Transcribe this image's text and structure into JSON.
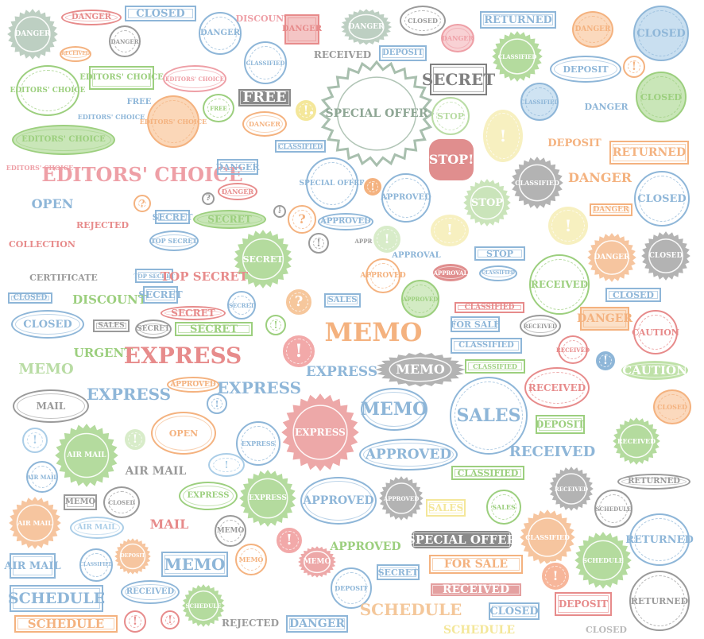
{
  "palette": {
    "green": "#9ccf7e",
    "lightgreen": "#b9dca4",
    "blue": "#8eb6d8",
    "lightblue": "#aacde7",
    "red": "#e78b8b",
    "pink": "#ee9fa6",
    "orange": "#f4b27f",
    "yellow": "#f4e79a",
    "gray": "#9a9a9a",
    "darkgray": "#7f7f7f",
    "sage": "#a8bfae"
  },
  "stamps": [
    {
      "id": "danger-burst-1",
      "text": "DANGER",
      "color": "sage"
    },
    {
      "id": "danger-1",
      "text": "DANGER",
      "color": "red"
    },
    {
      "id": "closed-1",
      "text": "CLOSED",
      "color": "blue"
    },
    {
      "id": "received-1",
      "text": "RECEIVED",
      "color": "orange"
    },
    {
      "id": "danger-2",
      "text": "DANGER",
      "color": "gray"
    },
    {
      "id": "danger-3",
      "text": "DANGER",
      "color": "blue"
    },
    {
      "id": "discount-1",
      "text": "DISCOUNT",
      "color": "pink"
    },
    {
      "id": "danger-4",
      "text": "DANGER",
      "color": "red"
    },
    {
      "id": "danger-5",
      "text": "DANGER",
      "color": "sage"
    },
    {
      "id": "closed-2",
      "text": "CLOSED",
      "color": "gray"
    },
    {
      "id": "danger-6",
      "text": "DANGER",
      "color": "pink"
    },
    {
      "id": "returned-1",
      "text": "RETURNED",
      "color": "blue"
    },
    {
      "id": "danger-7",
      "text": "DANGER",
      "color": "orange"
    },
    {
      "id": "closed-3",
      "text": "CLOSED",
      "color": "blue"
    },
    {
      "id": "classified-1",
      "text": "CLASSIFIED",
      "color": "blue"
    },
    {
      "id": "received-2",
      "text": "RECEIVED",
      "color": "gray"
    },
    {
      "id": "deposit-1",
      "text": "DEPOSIT",
      "color": "blue"
    },
    {
      "id": "secret-1",
      "text": "SECRET",
      "color": "darkgray"
    },
    {
      "id": "classified-2",
      "text": "CLASSIFIED",
      "color": "green"
    },
    {
      "id": "deposit-2",
      "text": "DEPOSIT",
      "color": "blue"
    },
    {
      "id": "editors-choice-1",
      "text": "EDITORS' CHOICE",
      "color": "green"
    },
    {
      "id": "editors-choice-2",
      "text": "EDITORS' CHOICE",
      "color": "green"
    },
    {
      "id": "editors-choice-3",
      "text": "EDITORS' CHOICE",
      "color": "pink"
    },
    {
      "id": "free-1",
      "text": "FREE",
      "color": "darkgray"
    },
    {
      "id": "special-offer-1",
      "text": "SPECIAL OFFER",
      "color": "darkgray"
    },
    {
      "id": "classified-3",
      "text": "CLASSIFIED",
      "color": "blue"
    },
    {
      "id": "closed-4",
      "text": "CLOSED",
      "color": "green"
    },
    {
      "id": "free-2",
      "text": "FREE",
      "color": "blue"
    },
    {
      "id": "editors-choice-4",
      "text": "EDITORS' CHOICE",
      "color": "blue"
    },
    {
      "id": "editors-choice-5",
      "text": "EDITORS' CHOICE",
      "color": "orange"
    },
    {
      "id": "danger-8",
      "text": "DANGER",
      "color": "blue"
    },
    {
      "id": "free-3",
      "text": "FREE",
      "color": "green"
    },
    {
      "id": "danger-9",
      "text": "DANGER",
      "color": "orange"
    },
    {
      "id": "stop-1",
      "text": "STOP",
      "color": "green"
    },
    {
      "id": "editors-choice-6",
      "text": "EDITORS' CHOICE",
      "color": "green"
    },
    {
      "id": "classified-4",
      "text": "CLASSIFIED",
      "color": "blue"
    },
    {
      "id": "deposit-3",
      "text": "DEPOSIT",
      "color": "orange"
    },
    {
      "id": "returned-2",
      "text": "RETURNED",
      "color": "orange"
    },
    {
      "id": "stop-2",
      "text": "STOP!",
      "color": "red"
    },
    {
      "id": "editors-choice-7",
      "text": "EDITORS' CHOICE",
      "color": "orange"
    },
    {
      "id": "editors-choice-big",
      "text": "EDITORS' CHOICE",
      "color": "red"
    },
    {
      "id": "danger-10",
      "text": "DANGER",
      "color": "blue"
    },
    {
      "id": "special-offer-2",
      "text": "SPECIAL OFFER",
      "color": "blue"
    },
    {
      "id": "classified-5",
      "text": "CLASSIFIED",
      "color": "gray"
    },
    {
      "id": "danger-11",
      "text": "DANGER",
      "color": "orange"
    },
    {
      "id": "open-1",
      "text": "OPEN",
      "color": "blue"
    },
    {
      "id": "danger-12",
      "text": "DANGER",
      "color": "red"
    },
    {
      "id": "approved-1",
      "text": "APPROVED",
      "color": "blue"
    },
    {
      "id": "stop-3",
      "text": "STOP",
      "color": "green"
    },
    {
      "id": "closed-5",
      "text": "CLOSED",
      "color": "blue"
    },
    {
      "id": "rejected-1",
      "text": "REJECTED",
      "color": "red"
    },
    {
      "id": "secret-2",
      "text": "SECRET",
      "color": "blue"
    },
    {
      "id": "secret-3",
      "text": "SECRET",
      "color": "green"
    },
    {
      "id": "danger-13",
      "text": "DANGER",
      "color": "orange"
    },
    {
      "id": "approved-2",
      "text": "APPROVED",
      "color": "blue"
    },
    {
      "id": "collection-1",
      "text": "COLLECTION",
      "color": "red"
    },
    {
      "id": "top-secret-1",
      "text": "TOP SECRET",
      "color": "blue"
    },
    {
      "id": "approval-1",
      "text": "APPROVAL",
      "color": "gray"
    },
    {
      "id": "stop-4",
      "text": "STOP",
      "color": "blue"
    },
    {
      "id": "secret-4",
      "text": "SECRET",
      "color": "green"
    },
    {
      "id": "approval-2",
      "text": "APPROVAL",
      "color": "blue"
    },
    {
      "id": "danger-14",
      "text": "DANGER",
      "color": "orange"
    },
    {
      "id": "closed-6",
      "text": "CLOSED",
      "color": "gray"
    },
    {
      "id": "certificate-1",
      "text": "CERTIFICATE",
      "color": "gray"
    },
    {
      "id": "top-secret-2",
      "text": "TOP SECRET",
      "color": "blue"
    },
    {
      "id": "top-secret-3",
      "text": "TOP SECRET",
      "color": "red"
    },
    {
      "id": "approved-3",
      "text": "APPROVED",
      "color": "orange"
    },
    {
      "id": "approval-3",
      "text": "APPROVAL",
      "color": "red"
    },
    {
      "id": "classified-6",
      "text": "CLASSIFIED",
      "color": "blue"
    },
    {
      "id": "received-3",
      "text": "RECEIVED",
      "color": "green"
    },
    {
      "id": "closed-7",
      "text": "CLOSED",
      "color": "blue"
    },
    {
      "id": "discount-2",
      "text": "DISCOUNT",
      "color": "green"
    },
    {
      "id": "secret-5",
      "text": "SECRET",
      "color": "blue"
    },
    {
      "id": "secret-6",
      "text": "SECRET",
      "color": "red"
    },
    {
      "id": "secret-7",
      "text": "SECRET",
      "color": "blue"
    },
    {
      "id": "sales-1",
      "text": "SALES",
      "color": "blue"
    },
    {
      "id": "approved-4",
      "text": "APPROVED",
      "color": "green"
    },
    {
      "id": "classified-7",
      "text": "CLASSIFIED",
      "color": "red"
    },
    {
      "id": "closed-8",
      "text": "CLOSED",
      "color": "blue"
    },
    {
      "id": "closed-9",
      "text": "CLOSED",
      "color": "blue"
    },
    {
      "id": "sales-2",
      "text": "SALES",
      "color": "gray"
    },
    {
      "id": "secret-8",
      "text": "SECRET",
      "color": "gray"
    },
    {
      "id": "secret-9",
      "text": "SECRET",
      "color": "green"
    },
    {
      "id": "memo-1",
      "text": "MEMO",
      "color": "orange"
    },
    {
      "id": "for-sale-1",
      "text": "FOR SALE",
      "color": "blue"
    },
    {
      "id": "received-4",
      "text": "RECEIVED",
      "color": "gray"
    },
    {
      "id": "danger-15",
      "text": "DANGER",
      "color": "orange"
    },
    {
      "id": "caution-1",
      "text": "CAUTION",
      "color": "red"
    },
    {
      "id": "urgent-1",
      "text": "URGENT",
      "color": "green"
    },
    {
      "id": "express-1",
      "text": "EXPRESS",
      "color": "red"
    },
    {
      "id": "classified-8",
      "text": "CLASSIFIED",
      "color": "blue"
    },
    {
      "id": "received-5",
      "text": "RECEIVED",
      "color": "red"
    },
    {
      "id": "memo-2",
      "text": "MEMO",
      "color": "green"
    },
    {
      "id": "express-2",
      "text": "EXPRESS",
      "color": "blue"
    },
    {
      "id": "memo-3",
      "text": "MEMO",
      "color": "gray"
    },
    {
      "id": "classified-9",
      "text": "CLASSIFIED",
      "color": "green"
    },
    {
      "id": "caution-2",
      "text": "CAUTION",
      "color": "green"
    },
    {
      "id": "express-3",
      "text": "EXPRESS",
      "color": "blue"
    },
    {
      "id": "approved-5",
      "text": "APPROVED",
      "color": "orange"
    },
    {
      "id": "express-4",
      "text": "EXPRESS",
      "color": "blue"
    },
    {
      "id": "express-5",
      "text": "EXPRESS",
      "color": "red"
    },
    {
      "id": "received-6",
      "text": "RECEIVED",
      "color": "red"
    },
    {
      "id": "mail-1",
      "text": "MAIL",
      "color": "gray"
    },
    {
      "id": "memo-4",
      "text": "MEMO",
      "color": "blue"
    },
    {
      "id": "sales-3",
      "text": "SALES",
      "color": "blue"
    },
    {
      "id": "closed-10",
      "text": "CLOSED",
      "color": "orange"
    },
    {
      "id": "deposit-4",
      "text": "DEPOSIT",
      "color": "green"
    },
    {
      "id": "received-7",
      "text": "RECEIVED",
      "color": "green"
    },
    {
      "id": "open-2",
      "text": "OPEN",
      "color": "orange"
    },
    {
      "id": "air-mail-1",
      "text": "AIR MAIL",
      "color": "green"
    },
    {
      "id": "express-6",
      "text": "EXPRESS",
      "color": "blue"
    },
    {
      "id": "approved-6",
      "text": "APPROVED",
      "color": "blue"
    },
    {
      "id": "received-8",
      "text": "RECEIVED",
      "color": "blue"
    },
    {
      "id": "air-mail-2",
      "text": "AIR MAIL",
      "color": "gray"
    },
    {
      "id": "air-mail-3",
      "text": "AIR MAIL",
      "color": "blue"
    },
    {
      "id": "classified-10",
      "text": "CLASSIFIED",
      "color": "green"
    },
    {
      "id": "returned-3",
      "text": "RETURNED",
      "color": "gray"
    },
    {
      "id": "express-7",
      "text": "EXPRESS",
      "color": "green"
    },
    {
      "id": "express-8",
      "text": "EXPRESS",
      "color": "green"
    },
    {
      "id": "approved-7",
      "text": "APPROVED",
      "color": "blue"
    },
    {
      "id": "approved-8",
      "text": "APPROVED",
      "color": "gray"
    },
    {
      "id": "sales-4",
      "text": "SALES",
      "color": "yellow"
    },
    {
      "id": "received-9",
      "text": "RECEIVED",
      "color": "blue"
    },
    {
      "id": "schedule-1",
      "text": "SCHEDULE",
      "color": "gray"
    },
    {
      "id": "memo-5",
      "text": "MEMO",
      "color": "gray"
    },
    {
      "id": "sales-5",
      "text": "SALES",
      "color": "green"
    },
    {
      "id": "closed-11",
      "text": "CLOSED",
      "color": "gray"
    },
    {
      "id": "air-mail-4",
      "text": "AIR MAIL",
      "color": "orange"
    },
    {
      "id": "air-mail-5",
      "text": "AIR MAIL",
      "color": "lightblue"
    },
    {
      "id": "mail-2",
      "text": "MAIL",
      "color": "red"
    },
    {
      "id": "memo-6",
      "text": "MEMO",
      "color": "gray"
    },
    {
      "id": "special-offer-3",
      "text": "SPECIAL OFFER",
      "color": "darkgray"
    },
    {
      "id": "classified-11",
      "text": "CLASSIFIED",
      "color": "orange"
    },
    {
      "id": "returned-4",
      "text": "RETURNED",
      "color": "blue"
    },
    {
      "id": "approved-9",
      "text": "APPROVED",
      "color": "green"
    },
    {
      "id": "for-sale-2",
      "text": "FOR SALE",
      "color": "orange"
    },
    {
      "id": "schedule-2",
      "text": "SCHEDULE",
      "color": "green"
    },
    {
      "id": "air-mail-6",
      "text": "AIR MAIL",
      "color": "blue"
    },
    {
      "id": "classified-12",
      "text": "CLASSIFIED",
      "color": "blue"
    },
    {
      "id": "deposit-5",
      "text": "DEPOSIT",
      "color": "orange"
    },
    {
      "id": "memo-7",
      "text": "MEMO",
      "color": "blue"
    },
    {
      "id": "memo-8",
      "text": "MEMO",
      "color": "orange"
    },
    {
      "id": "memo-9",
      "text": "MEMO",
      "color": "red"
    },
    {
      "id": "deposit-6",
      "text": "DEPOSIT",
      "color": "blue"
    },
    {
      "id": "secret-10",
      "text": "SECRET",
      "color": "blue"
    },
    {
      "id": "received-10",
      "text": "RECEIVED",
      "color": "red"
    },
    {
      "id": "returned-5",
      "text": "RETURNED",
      "color": "gray"
    },
    {
      "id": "schedule-3",
      "text": "SCHEDULE",
      "color": "blue"
    },
    {
      "id": "received-11",
      "text": "RECEIVED",
      "color": "blue"
    },
    {
      "id": "schedule-4",
      "text": "SCHEDULE",
      "color": "green"
    },
    {
      "id": "closed-12",
      "text": "CLOSED",
      "color": "blue"
    },
    {
      "id": "deposit-7",
      "text": "DEPOSIT",
      "color": "red"
    },
    {
      "id": "schedule-5",
      "text": "SCHEDULE",
      "color": "orange"
    },
    {
      "id": "rejected-2",
      "text": "REJECTED",
      "color": "gray"
    },
    {
      "id": "danger-16",
      "text": "DANGER",
      "color": "blue"
    },
    {
      "id": "schedule-6",
      "text": "SCHEDULE",
      "color": "orange"
    },
    {
      "id": "schedule-7",
      "text": "SCHEDULE",
      "color": "yellow"
    },
    {
      "id": "closed-13",
      "text": "CLOSED",
      "color": "gray"
    }
  ]
}
